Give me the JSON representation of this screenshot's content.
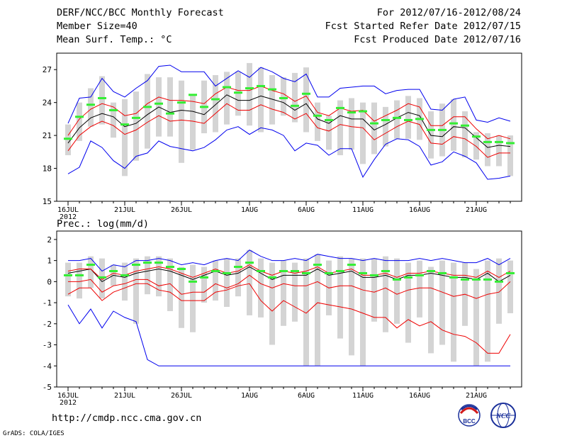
{
  "header": {
    "title": "DERF/NCC/BCC Monthly Forecast",
    "member_size": "Member Size=40",
    "variable": "Mean Surf. Temp.: °C",
    "period": "For 2012/07/16-2012/08/24",
    "fcst_started": "Fcst Started Refer Date 2012/07/15",
    "fcst_produced": "Fcst Produced Date 2012/07/16"
  },
  "footer": {
    "url": "http://cmdp.ncc.cma.gov.cn",
    "grads": "GrADS: COLA/IGES",
    "logo_bcc_text": "BCC",
    "logo_ncc_text": "NCC"
  },
  "colors": {
    "box": "#d4d4d4",
    "median": "#33ee33",
    "mean": "#000000",
    "std": "#ee0000",
    "range": "#0000ee"
  },
  "chart_data": [
    {
      "type": "line",
      "title": "Mean Surf. Temp.: °C",
      "x_days": 40,
      "xtick_labels": [
        "16JUL",
        "21JUL",
        "26JUL",
        "1AUG",
        "6AUG",
        "11AUG",
        "16AUG",
        "21AUG"
      ],
      "xtick_days": [
        0,
        5,
        10,
        16,
        21,
        26,
        31,
        36
      ],
      "year_label": "2012",
      "ylim": [
        15,
        28.5
      ],
      "yticks": [
        15,
        18,
        21,
        24,
        27
      ],
      "boxes": {
        "low": [
          19.2,
          20.5,
          21.8,
          22.0,
          20.8,
          17.3,
          18.7,
          19.8,
          20.9,
          20.9,
          18.5,
          19.7,
          21.2,
          21.3,
          22.0,
          22.8,
          21.9,
          21.3,
          22.0,
          22.8,
          22.2,
          21.3,
          20.5,
          19.7,
          19.2,
          19.7,
          18.4,
          19.3,
          20.0,
          20.7,
          20.7,
          20.6,
          18.9,
          19.1,
          19.6,
          19.0,
          18.8,
          18.2,
          18.2,
          17.3
        ],
        "high": [
          22.0,
          24.0,
          25.3,
          26.4,
          24.0,
          24.3,
          25.0,
          26.6,
          26.3,
          26.3,
          26.0,
          24.7,
          26.0,
          26.5,
          26.8,
          26.8,
          27.6,
          27.2,
          26.5,
          26.3,
          26.7,
          27.2,
          24.0,
          22.8,
          24.2,
          24.4,
          24.0,
          24.0,
          23.6,
          24.2,
          24.6,
          24.4,
          23.2,
          23.9,
          24.3,
          23.2,
          21.3,
          21.2,
          21.0,
          21.0
        ]
      },
      "series": [
        {
          "name": "median",
          "values": [
            20.7,
            22.7,
            23.8,
            24.4,
            23.3,
            22.0,
            22.6,
            23.6,
            23.9,
            23.0,
            24.0,
            24.7,
            23.6,
            24.3,
            25.4,
            24.9,
            25.3,
            25.5,
            25.2,
            24.4,
            23.7,
            24.8,
            22.8,
            22.4,
            23.5,
            23.1,
            23.2,
            22.1,
            22.4,
            22.6,
            22.4,
            22.5,
            21.5,
            21.5,
            22.1,
            21.9,
            20.9,
            20.4,
            20.4,
            20.3
          ]
        },
        {
          "name": "mean",
          "values": [
            20.3,
            21.7,
            22.6,
            23.0,
            22.7,
            21.8,
            22.1,
            22.9,
            23.6,
            23.1,
            23.3,
            23.2,
            22.9,
            23.8,
            24.7,
            24.2,
            24.2,
            24.6,
            24.3,
            24.0,
            23.3,
            23.9,
            22.5,
            22.1,
            22.8,
            22.5,
            22.5,
            21.5,
            22.0,
            22.6,
            23.1,
            22.8,
            21.0,
            20.9,
            21.8,
            21.7,
            20.8,
            19.9,
            20.1,
            20.0
          ]
        },
        {
          "name": "mean_plus_std",
          "values": [
            21.0,
            22.5,
            23.4,
            23.9,
            23.6,
            22.8,
            23.0,
            23.9,
            24.5,
            24.2,
            24.2,
            24.1,
            23.9,
            24.8,
            25.4,
            25.1,
            25.1,
            25.5,
            25.1,
            24.8,
            24.1,
            24.6,
            23.1,
            22.8,
            23.5,
            23.2,
            23.3,
            22.3,
            22.8,
            23.3,
            23.9,
            23.6,
            21.9,
            21.9,
            22.7,
            22.7,
            21.6,
            20.7,
            21.0,
            20.7
          ]
        },
        {
          "name": "mean_minus_std",
          "values": [
            19.6,
            21.0,
            21.8,
            22.3,
            21.9,
            21.1,
            21.5,
            22.2,
            22.8,
            22.3,
            22.4,
            22.3,
            22.1,
            23.0,
            23.9,
            23.3,
            23.3,
            23.8,
            23.4,
            23.1,
            22.5,
            23.0,
            21.7,
            21.4,
            22.0,
            21.8,
            21.7,
            20.6,
            21.2,
            21.8,
            22.3,
            22.0,
            20.3,
            20.2,
            20.9,
            20.7,
            20.0,
            19.0,
            19.4,
            19.4
          ]
        },
        {
          "name": "max",
          "values": [
            22.1,
            24.4,
            24.5,
            26.2,
            25.0,
            24.5,
            25.3,
            26.0,
            27.3,
            27.4,
            26.8,
            26.8,
            26.8,
            25.5,
            26.2,
            26.9,
            26.3,
            27.2,
            26.8,
            26.2,
            25.9,
            26.6,
            24.5,
            24.5,
            25.3,
            25.4,
            25.5,
            25.5,
            24.8,
            25.1,
            25.2,
            25.2,
            23.4,
            23.3,
            24.3,
            24.5,
            22.4,
            22.2,
            22.6,
            22.3
          ]
        },
        {
          "name": "min",
          "values": [
            17.5,
            18.1,
            20.5,
            19.9,
            18.7,
            18.0,
            19.1,
            19.4,
            20.5,
            20.0,
            19.8,
            19.6,
            19.9,
            20.6,
            21.5,
            21.8,
            21.1,
            21.7,
            21.5,
            21.0,
            19.6,
            20.3,
            20.1,
            19.2,
            19.8,
            19.8,
            17.2,
            18.8,
            20.2,
            20.7,
            20.6,
            20.0,
            18.3,
            18.6,
            19.5,
            19.1,
            18.5,
            17.0,
            17.1,
            17.3
          ]
        }
      ]
    },
    {
      "type": "line",
      "title": "Prec.: log(mm/d)",
      "x_days": 40,
      "xtick_labels": [
        "16JUL",
        "21JUL",
        "26JUL",
        "1AUG",
        "6AUG",
        "11AUG",
        "16AUG",
        "21AUG"
      ],
      "xtick_days": [
        0,
        5,
        10,
        16,
        21,
        26,
        31,
        36
      ],
      "year_label": "2012",
      "ylim": [
        -5,
        2.4
      ],
      "yticks": [
        -5,
        -4,
        -3,
        -2,
        -1,
        0,
        1,
        2
      ],
      "boxes": {
        "low": [
          -0.7,
          -0.8,
          -0.3,
          -0.8,
          -0.2,
          -0.9,
          -2.0,
          -0.6,
          -0.7,
          -1.4,
          -2.2,
          -2.4,
          -1.0,
          -0.9,
          -1.2,
          -0.7,
          -1.6,
          -1.7,
          -3.0,
          -2.1,
          -1.9,
          -4.0,
          -4.0,
          -1.6,
          -2.7,
          -3.5,
          -4.0,
          -1.9,
          -2.4,
          -2.0,
          -2.9,
          -1.7,
          -3.4,
          -3.0,
          -3.8,
          -2.1,
          -4.0,
          -3.8,
          -2.0,
          -1.5
        ],
        "high": [
          0.9,
          0.9,
          1.2,
          1.1,
          0.8,
          0.9,
          1.1,
          1.2,
          1.2,
          1.1,
          0.7,
          0.8,
          0.7,
          1.0,
          1.1,
          1.1,
          1.5,
          1.1,
          0.9,
          1.0,
          0.9,
          1.1,
          1.3,
          1.0,
          1.2,
          1.1,
          1.1,
          1.1,
          1.2,
          1.1,
          0.9,
          1.0,
          0.7,
          1.0,
          0.9,
          0.9,
          0.6,
          1.0,
          1.1,
          1.0
        ]
      },
      "series": [
        {
          "name": "median",
          "values": [
            0.3,
            0.3,
            0.8,
            0.2,
            0.5,
            0.3,
            0.8,
            0.9,
            0.9,
            0.7,
            0.6,
            0.0,
            0.2,
            0.5,
            0.4,
            0.7,
            0.9,
            0.5,
            0.2,
            0.5,
            0.5,
            0.4,
            0.8,
            0.4,
            0.5,
            0.8,
            0.4,
            0.3,
            0.5,
            0.1,
            0.2,
            0.3,
            0.5,
            0.4,
            0.2,
            0.1,
            0.1,
            0.1,
            0.0,
            0.4
          ]
        },
        {
          "name": "mean",
          "values": [
            0.4,
            0.5,
            0.6,
            0.0,
            0.3,
            0.2,
            0.4,
            0.5,
            0.6,
            0.5,
            0.3,
            0.1,
            0.3,
            0.5,
            0.3,
            0.4,
            0.7,
            0.4,
            0.1,
            0.3,
            0.3,
            0.3,
            0.6,
            0.3,
            0.4,
            0.5,
            0.2,
            0.2,
            0.3,
            0.1,
            0.3,
            0.3,
            0.4,
            0.3,
            0.2,
            0.2,
            0.1,
            0.4,
            0.0,
            0.3
          ]
        },
        {
          "name": "mean_plus_std",
          "values": [
            0.5,
            0.6,
            0.6,
            0.1,
            0.4,
            0.3,
            0.5,
            0.6,
            0.7,
            0.6,
            0.4,
            0.2,
            0.4,
            0.6,
            0.4,
            0.5,
            0.8,
            0.5,
            0.3,
            0.5,
            0.4,
            0.5,
            0.7,
            0.4,
            0.5,
            0.6,
            0.3,
            0.3,
            0.4,
            0.2,
            0.4,
            0.4,
            0.5,
            0.4,
            0.3,
            0.3,
            0.2,
            0.5,
            0.2,
            0.5
          ]
        },
        {
          "name": "mean_minus_std",
          "values": [
            0.0,
            0.0,
            0.1,
            -0.5,
            -0.2,
            -0.1,
            0.1,
            0.1,
            -0.2,
            -0.1,
            -0.6,
            -0.5,
            -0.5,
            -0.1,
            -0.3,
            -0.1,
            0.3,
            -0.1,
            -0.3,
            -0.1,
            -0.2,
            -0.2,
            0.0,
            -0.3,
            -0.2,
            -0.2,
            -0.4,
            -0.5,
            -0.3,
            -0.6,
            -0.4,
            -0.3,
            -0.3,
            -0.5,
            -0.7,
            -0.6,
            -0.8,
            -0.6,
            -0.5,
            0.0
          ]
        },
        {
          "name": "low_std",
          "values": [
            -0.6,
            -0.3,
            -0.3,
            -0.9,
            -0.5,
            -0.3,
            -0.1,
            -0.1,
            -0.4,
            -0.5,
            -0.9,
            -0.9,
            -0.9,
            -0.5,
            -0.4,
            -0.2,
            -0.1,
            -0.9,
            -1.4,
            -0.9,
            -1.2,
            -1.5,
            -1.0,
            -1.1,
            -1.2,
            -1.3,
            -1.5,
            -1.7,
            -1.7,
            -2.2,
            -1.8,
            -2.1,
            -1.9,
            -2.3,
            -2.5,
            -2.6,
            -2.9,
            -3.4,
            -3.4,
            -2.5
          ]
        },
        {
          "name": "max",
          "values": [
            1.0,
            1.0,
            1.1,
            0.5,
            0.8,
            0.7,
            1.0,
            1.0,
            1.1,
            1.0,
            0.8,
            0.9,
            0.8,
            1.0,
            1.1,
            1.0,
            1.5,
            1.2,
            1.0,
            1.0,
            1.1,
            1.0,
            1.3,
            1.2,
            1.1,
            1.1,
            1.0,
            1.1,
            1.0,
            1.0,
            1.0,
            1.1,
            1.0,
            1.1,
            1.0,
            0.9,
            0.9,
            1.1,
            0.8,
            1.1
          ]
        },
        {
          "name": "min",
          "values": [
            -1.1,
            -2.0,
            -1.3,
            -2.2,
            -1.4,
            -1.7,
            -1.9,
            -3.7,
            -4.0,
            -4.0,
            -4.0,
            -4.0,
            -4.0,
            -4.0,
            -4.0,
            -4.0,
            -4.0,
            -4.0,
            -4.0,
            -4.0,
            -4.0,
            -4.0,
            -4.0,
            -4.0,
            -4.0,
            -4.0,
            -4.0,
            -4.0,
            -4.0,
            -4.0,
            -4.0,
            -4.0,
            -4.0,
            -4.0,
            -4.0,
            -4.0,
            -4.0,
            -4.0,
            -4.0,
            -4.0
          ]
        }
      ]
    }
  ]
}
